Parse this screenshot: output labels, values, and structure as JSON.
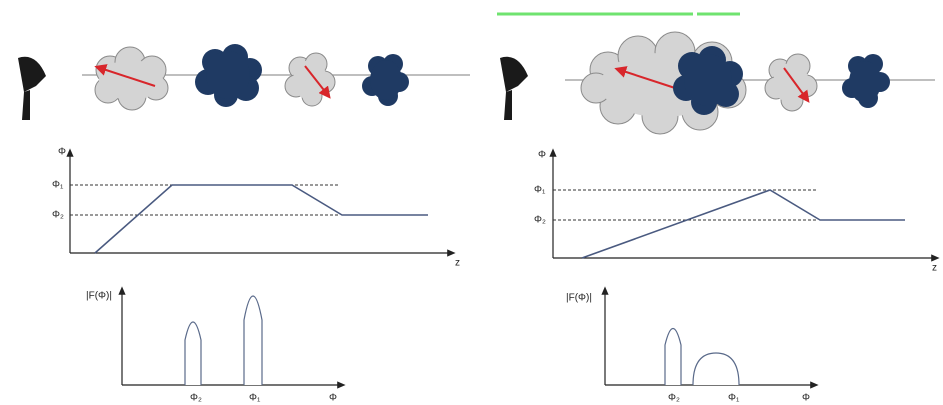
{
  "left": {
    "profile": {
      "y_axis": "Φ",
      "phi1": "Φ₁",
      "phi2": "Φ₂",
      "x_axis": "z"
    },
    "spectrum": {
      "y_axis": "|F(Φ)|",
      "peak_labels": [
        "Φ₂",
        "Φ₁"
      ],
      "x_axis": "Φ"
    }
  },
  "right": {
    "profile": {
      "y_axis": "Φ",
      "phi1": "Φ₁",
      "phi2": "Φ₂",
      "x_axis": "z"
    },
    "spectrum": {
      "y_axis": "|F(Φ)|",
      "peak_labels": [
        "Φ₂",
        "Φ₁"
      ],
      "x_axis": "Φ"
    }
  }
}
